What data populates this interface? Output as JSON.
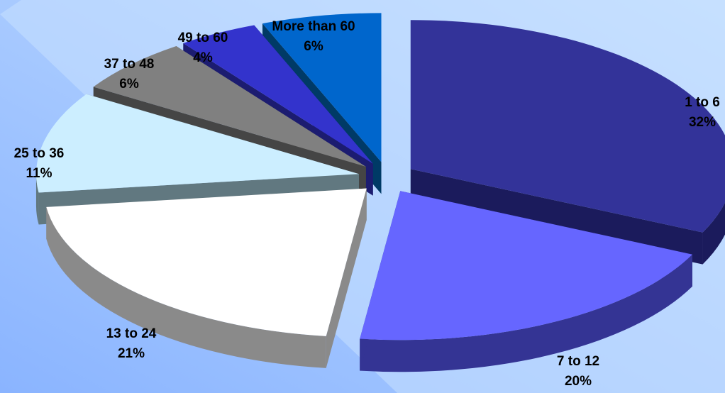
{
  "chart_data": {
    "type": "pie",
    "variant": "3d-exploded",
    "categories": [
      "1 to 6",
      "7 to 12",
      "13 to 24",
      "25 to 36",
      "37 to 48",
      "49 to 60",
      "More than 60"
    ],
    "values": [
      32,
      20,
      21,
      11,
      6,
      4,
      6
    ],
    "value_labels": [
      "32%",
      "20%",
      "21%",
      "11%",
      "6%",
      "4%",
      "6%"
    ],
    "colors": [
      "#333399",
      "#6666ff",
      "#ffffff",
      "#cceeff",
      "#808080",
      "#3333cc",
      "#0066cc"
    ],
    "side_colors": [
      "#1b1b5c",
      "#343494",
      "#8a8a8a",
      "#617880",
      "#454545",
      "#1c1c70",
      "#003a66"
    ],
    "background": {
      "light": "#c6e0ff",
      "dark": "#8ab4ff"
    },
    "title": "",
    "legend": "none"
  }
}
